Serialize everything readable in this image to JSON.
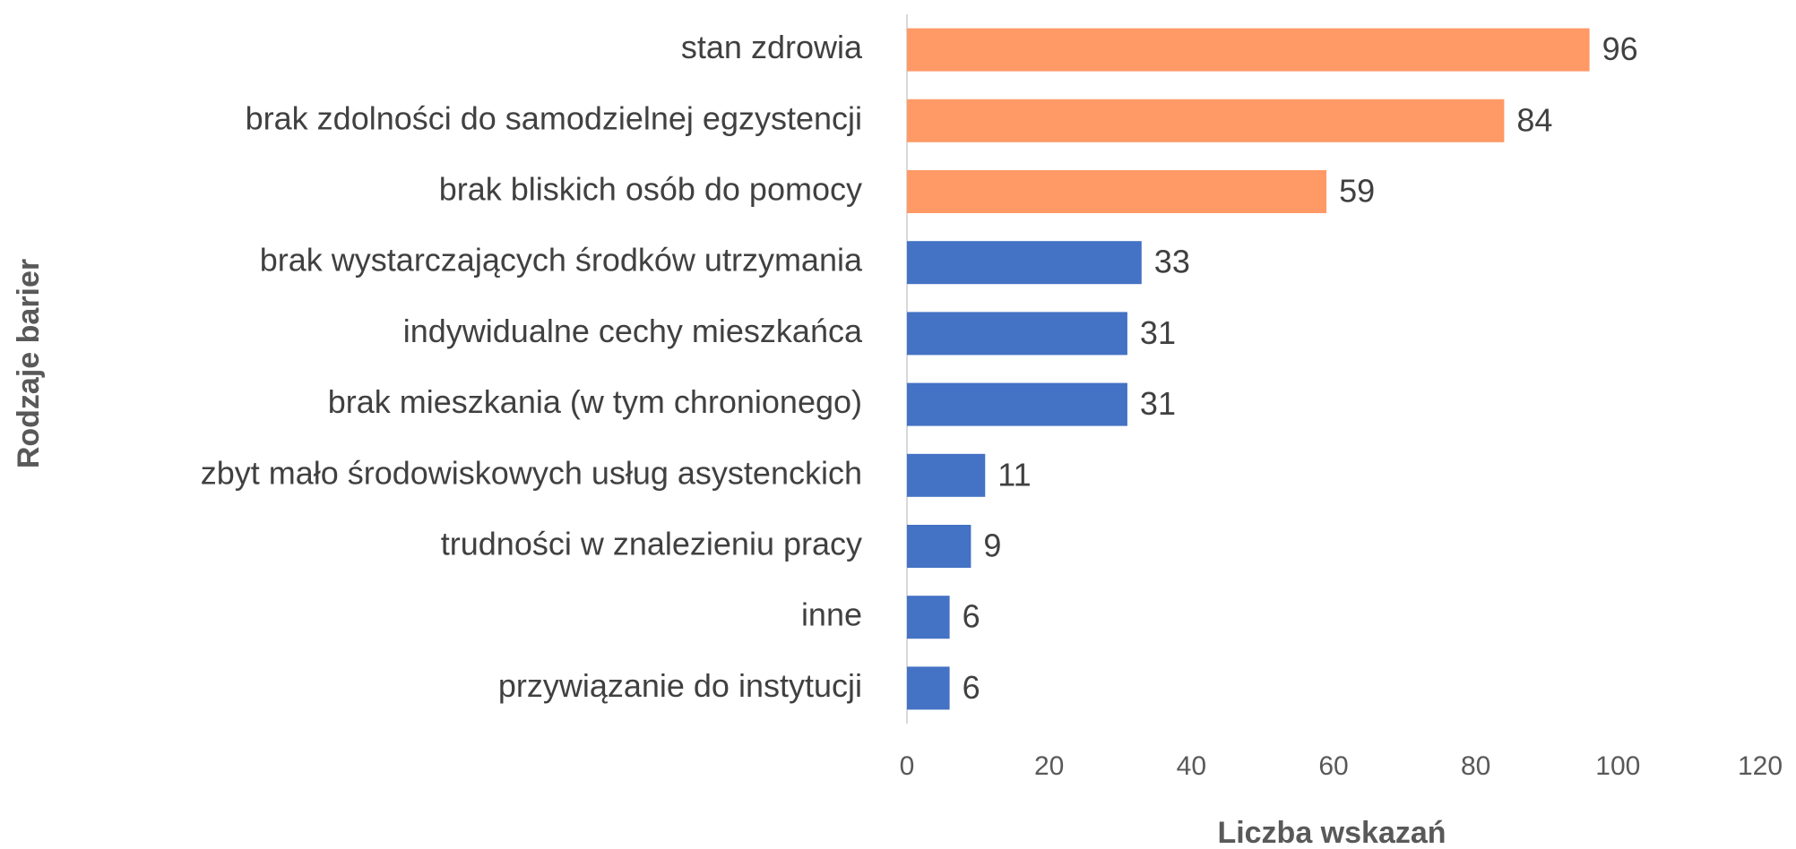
{
  "chart_data": {
    "type": "bar",
    "orientation": "horizontal",
    "categories": [
      "stan zdrowia",
      "brak zdolności do samodzielnej egzystencji",
      "brak bliskich osób do pomocy",
      "brak wystarczających środków utrzymania",
      "indywidualne cechy mieszkańca",
      "brak mieszkania (w tym chronionego)",
      "zbyt mało środowiskowych usług asystenckich",
      "trudności w znalezieniu pracy",
      "inne",
      "przywiązanie do instytucji"
    ],
    "values": [
      96,
      84,
      59,
      33,
      31,
      31,
      11,
      9,
      6,
      6
    ],
    "colors": [
      "#ff9966",
      "#ff9966",
      "#ff9966",
      "#4472c4",
      "#4472c4",
      "#4472c4",
      "#4472c4",
      "#4472c4",
      "#4472c4",
      "#4472c4"
    ],
    "xlim": [
      0,
      120
    ],
    "xticks": [
      0,
      20,
      40,
      60,
      80,
      100,
      120
    ],
    "x_label": "Liczba wskazań",
    "y_label": "Rodzaje barier",
    "grid": false
  }
}
